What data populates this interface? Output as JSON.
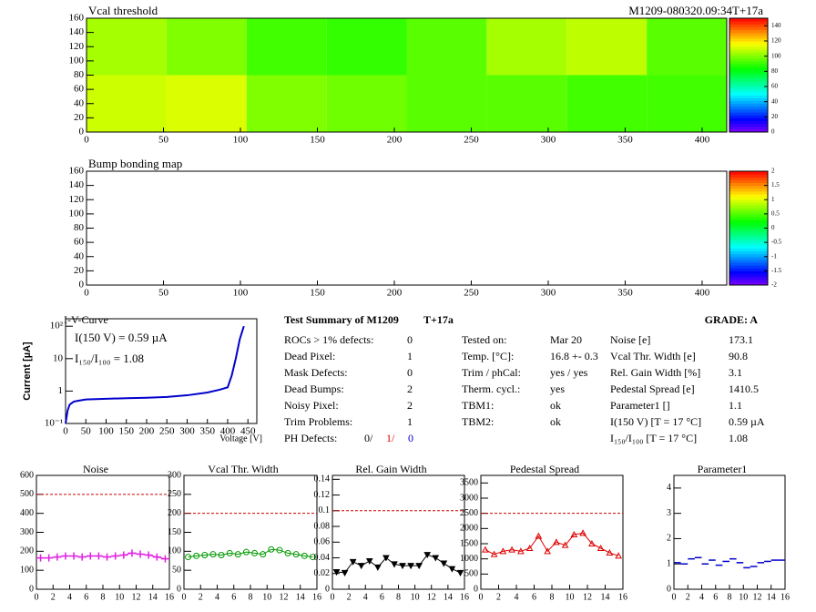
{
  "chart_data": [
    {
      "type": "heatmap",
      "title": "Vcal threshold",
      "subtitle": "M1209-080320.09:34T+17a",
      "xbins": [
        0,
        52,
        104,
        156,
        208,
        260,
        312,
        364,
        416
      ],
      "ybins": [
        0,
        80,
        160
      ],
      "values": [
        [
          110,
          112,
          100,
          98,
          95,
          95,
          92,
          92
        ],
        [
          105,
          100,
          92,
          90,
          95,
          105,
          108,
          95
        ]
      ],
      "xlim": [
        0,
        416
      ],
      "ylim": [
        0,
        160
      ],
      "xticks": [
        0,
        50,
        100,
        150,
        200,
        250,
        300,
        350,
        400
      ],
      "yticks": [
        0,
        20,
        40,
        60,
        80,
        100,
        120,
        140,
        160
      ],
      "zlim": [
        0,
        150
      ],
      "zticks": [
        0,
        20,
        40,
        60,
        80,
        100,
        120,
        140
      ]
    },
    {
      "type": "heatmap",
      "title": "Bump bonding map",
      "xlim": [
        0,
        416
      ],
      "ylim": [
        0,
        160
      ],
      "xticks": [
        0,
        50,
        100,
        150,
        200,
        250,
        300,
        350,
        400
      ],
      "yticks": [
        0,
        20,
        40,
        60,
        80,
        100,
        120,
        140,
        160
      ],
      "zlim": [
        -2,
        2
      ],
      "zticks": [
        -2,
        -1.5,
        -1,
        -0.5,
        0,
        0.5,
        1,
        1.5,
        2
      ]
    },
    {
      "type": "line",
      "title": "I-V-Curve",
      "x_label": "Voltage [V]",
      "y_label": "Current [µA]",
      "annotations": [
        "I(150 V) = 0.59 µA",
        "I₁₅₀/I₁₀₀ =  1.08"
      ],
      "x": [
        0,
        5,
        10,
        20,
        30,
        50,
        100,
        150,
        200,
        250,
        300,
        350,
        380,
        400,
        410,
        420,
        430,
        440
      ],
      "values": [
        0.1,
        0.25,
        0.38,
        0.47,
        0.5,
        0.55,
        0.58,
        0.6,
        0.62,
        0.66,
        0.74,
        0.9,
        1.1,
        1.3,
        3,
        10,
        40,
        100
      ],
      "color": "#0000cc",
      "log_y": true,
      "xlim": [
        0,
        472
      ],
      "ylim": [
        0.1,
        170
      ],
      "xticks": [
        0,
        50,
        100,
        150,
        200,
        250,
        300,
        350,
        400,
        450
      ],
      "yticks": [
        {
          "value": 0.1,
          "label": "10⁻¹"
        },
        1,
        10,
        {
          "value": 100,
          "label": "10²"
        }
      ]
    },
    {
      "type": "roc",
      "title": "Noise",
      "color": "#e020e0",
      "marker": "cross",
      "connect": true,
      "threshold": 500,
      "x": [
        0.5,
        1.5,
        2.5,
        3.5,
        4.5,
        5.5,
        6.5,
        7.5,
        8.5,
        9.5,
        10.5,
        11.5,
        12.5,
        13.5,
        14.5,
        15.5
      ],
      "values": [
        165,
        165,
        170,
        175,
        175,
        170,
        175,
        175,
        170,
        175,
        180,
        190,
        185,
        180,
        170,
        160
      ],
      "xlim": [
        0,
        16
      ],
      "ylim": [
        0,
        600
      ],
      "xticks": [
        0,
        2,
        4,
        6,
        8,
        10,
        12,
        14,
        16
      ],
      "yticks": [
        0,
        100,
        200,
        300,
        400,
        500,
        600
      ]
    },
    {
      "type": "roc",
      "title": "Vcal Thr. Width",
      "color": "#009900",
      "marker": "circle",
      "connect": true,
      "threshold": 200,
      "x": [
        0.5,
        1.5,
        2.5,
        3.5,
        4.5,
        5.5,
        6.5,
        7.5,
        8.5,
        9.5,
        10.5,
        11.5,
        12.5,
        13.5,
        14.5,
        15.5
      ],
      "values": [
        85,
        88,
        90,
        92,
        90,
        95,
        92,
        98,
        95,
        92,
        105,
        103,
        95,
        92,
        88,
        85
      ],
      "xlim": [
        0,
        16
      ],
      "ylim": [
        0,
        300
      ],
      "xticks": [
        0,
        2,
        4,
        6,
        8,
        10,
        12,
        14,
        16
      ],
      "yticks": [
        0,
        50,
        100,
        150,
        200,
        250,
        300
      ]
    },
    {
      "type": "roc",
      "title": "Rel. Gain Width",
      "color": "#000000",
      "marker": "triangle-down",
      "connect": true,
      "threshold": 0.1,
      "x": [
        0.5,
        1.5,
        2.5,
        3.5,
        4.5,
        5.5,
        6.5,
        7.5,
        8.5,
        9.5,
        10.5,
        11.5,
        12.5,
        13.5,
        14.5,
        15.5
      ],
      "values": [
        0.022,
        0.021,
        0.035,
        0.03,
        0.036,
        0.028,
        0.04,
        0.032,
        0.03,
        0.03,
        0.03,
        0.044,
        0.04,
        0.033,
        0.026,
        0.021
      ],
      "xlim": [
        0,
        16
      ],
      "ylim": [
        0,
        0.145
      ],
      "xticks": [
        0,
        2,
        4,
        6,
        8,
        10,
        12,
        14,
        16
      ],
      "yticks": [
        0,
        0.02,
        0.04,
        0.06,
        0.08,
        0.1,
        0.12,
        0.14
      ]
    },
    {
      "type": "roc",
      "title": "Pedestal Spread",
      "color": "#dd0000",
      "marker": "triangle-up",
      "connect": true,
      "threshold": 2500,
      "x": [
        0.5,
        1.5,
        2.5,
        3.5,
        4.5,
        5.5,
        6.5,
        7.5,
        8.5,
        9.5,
        10.5,
        11.5,
        12.5,
        13.5,
        14.5,
        15.5
      ],
      "values": [
        1300,
        1150,
        1250,
        1300,
        1250,
        1350,
        1750,
        1250,
        1550,
        1450,
        1800,
        1850,
        1500,
        1350,
        1200,
        1100
      ],
      "xlim": [
        0,
        16
      ],
      "ylim": [
        0,
        3750
      ],
      "xticks": [
        0,
        2,
        4,
        6,
        8,
        10,
        12,
        14,
        16
      ],
      "yticks": [
        0,
        500,
        1000,
        1500,
        2000,
        2500,
        3000,
        3500
      ]
    },
    {
      "type": "roc",
      "title": "Parameter1",
      "color": "#0000cc",
      "marker": "dash",
      "connect": false,
      "x": [
        0.5,
        1.5,
        2.5,
        3.5,
        4.5,
        5.5,
        6.5,
        7.5,
        8.5,
        9.5,
        10.5,
        11.5,
        12.5,
        13.5,
        14.5,
        15.5
      ],
      "values": [
        1.05,
        1.0,
        1.2,
        1.25,
        1.0,
        1.15,
        0.95,
        1.1,
        1.2,
        1.05,
        0.85,
        0.9,
        1.05,
        1.1,
        1.15,
        1.15
      ],
      "xlim": [
        0,
        16
      ],
      "ylim": [
        0,
        4.5
      ],
      "xticks": [
        0,
        2,
        4,
        6,
        8,
        10,
        12,
        14,
        16
      ],
      "yticks": [
        0,
        1,
        2,
        3,
        4
      ]
    }
  ],
  "summary": {
    "title": "Test Summary of M1209",
    "tag": "T+17a",
    "grade": "GRADE:  A",
    "defects": [
      {
        "label": "ROCs > 1% defects:",
        "value": "0"
      },
      {
        "label": "Dead Pixel:",
        "value": "1"
      },
      {
        "label": "Mask Defects:",
        "value": "0"
      },
      {
        "label": "Dead Bumps:",
        "value": "2"
      },
      {
        "label": "Noisy Pixel:",
        "value": "2"
      },
      {
        "label": "Trim Problems:",
        "value": "1"
      }
    ],
    "ph_defects": {
      "label": "PH Defects:",
      "values": [
        "0/",
        "1/",
        "0"
      ],
      "colors": [
        "#000000",
        "#dd0000",
        "#0000cc"
      ]
    },
    "conditions": [
      {
        "label": "Tested on:",
        "value": "Mar 20"
      },
      {
        "label": "Temp. [°C]:",
        "value": "16.8 +- 0.3"
      },
      {
        "label": "Trim / phCal:",
        "value": "yes / yes"
      },
      {
        "label": "Therm. cycl.:",
        "value": "yes"
      },
      {
        "label": "TBM1:",
        "value": "ok"
      },
      {
        "label": "TBM2:",
        "value": "ok"
      }
    ],
    "results": [
      {
        "label": "Noise [e]",
        "value": "173.1"
      },
      {
        "label": "Vcal Thr. Width [e]",
        "value": "90.8"
      },
      {
        "label": "Rel. Gain Width [%]",
        "value": "3.1"
      },
      {
        "label": "Pedestal Spread [e]",
        "value": "1410.5"
      },
      {
        "label": "Parameter1 []",
        "value": "1.1"
      },
      {
        "label": "I(150 V)  [T = 17 °C]",
        "value": "0.59 µA"
      },
      {
        "label": "I₁₅₀/I₁₀₀  [T = 17 °C]",
        "value": "1.08"
      }
    ]
  }
}
